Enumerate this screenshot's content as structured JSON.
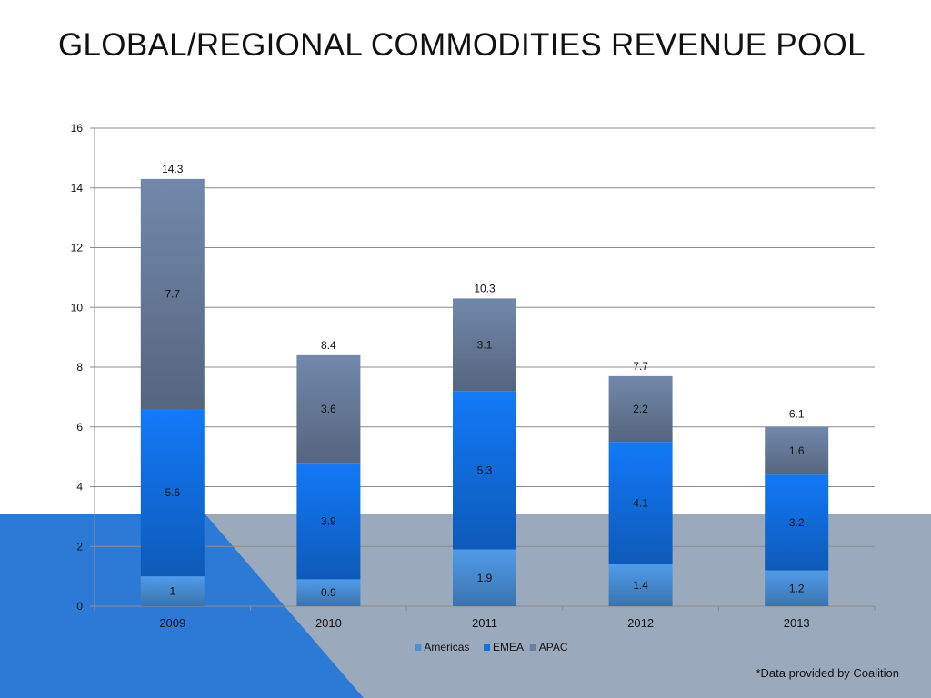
{
  "slide": {
    "title": "GLOBAL/REGIONAL COMMODITIES REVENUE POOL",
    "footnote": "*Data provided by Coalition"
  },
  "colors": {
    "Americas": "#4a90d9",
    "EMEA": "#1170e6",
    "APAC": "#6a7e9e",
    "grid": "#8c8c8c",
    "text": "#111111",
    "background_band": "#9ba9bd",
    "background_triangle": "#2d7ad6"
  },
  "chart_data": {
    "type": "bar",
    "stacked": true,
    "title": "",
    "xlabel": "",
    "ylabel": "",
    "categories": [
      "2009",
      "2010",
      "2011",
      "2012",
      "2013"
    ],
    "series": [
      {
        "name": "Americas",
        "values": [
          1,
          0.9,
          1.9,
          1.4,
          1.2
        ]
      },
      {
        "name": "EMEA",
        "values": [
          5.6,
          3.9,
          5.3,
          4.1,
          3.2
        ]
      },
      {
        "name": "APAC",
        "values": [
          7.7,
          3.6,
          3.1,
          2.2,
          1.6
        ]
      }
    ],
    "totals": [
      14.3,
      8.4,
      10.3,
      7.7,
      6.1
    ],
    "ylim": [
      0,
      16
    ],
    "yticks": [
      0,
      2,
      4,
      6,
      8,
      10,
      12,
      14,
      16
    ],
    "grid": true,
    "legend": "bottom"
  }
}
